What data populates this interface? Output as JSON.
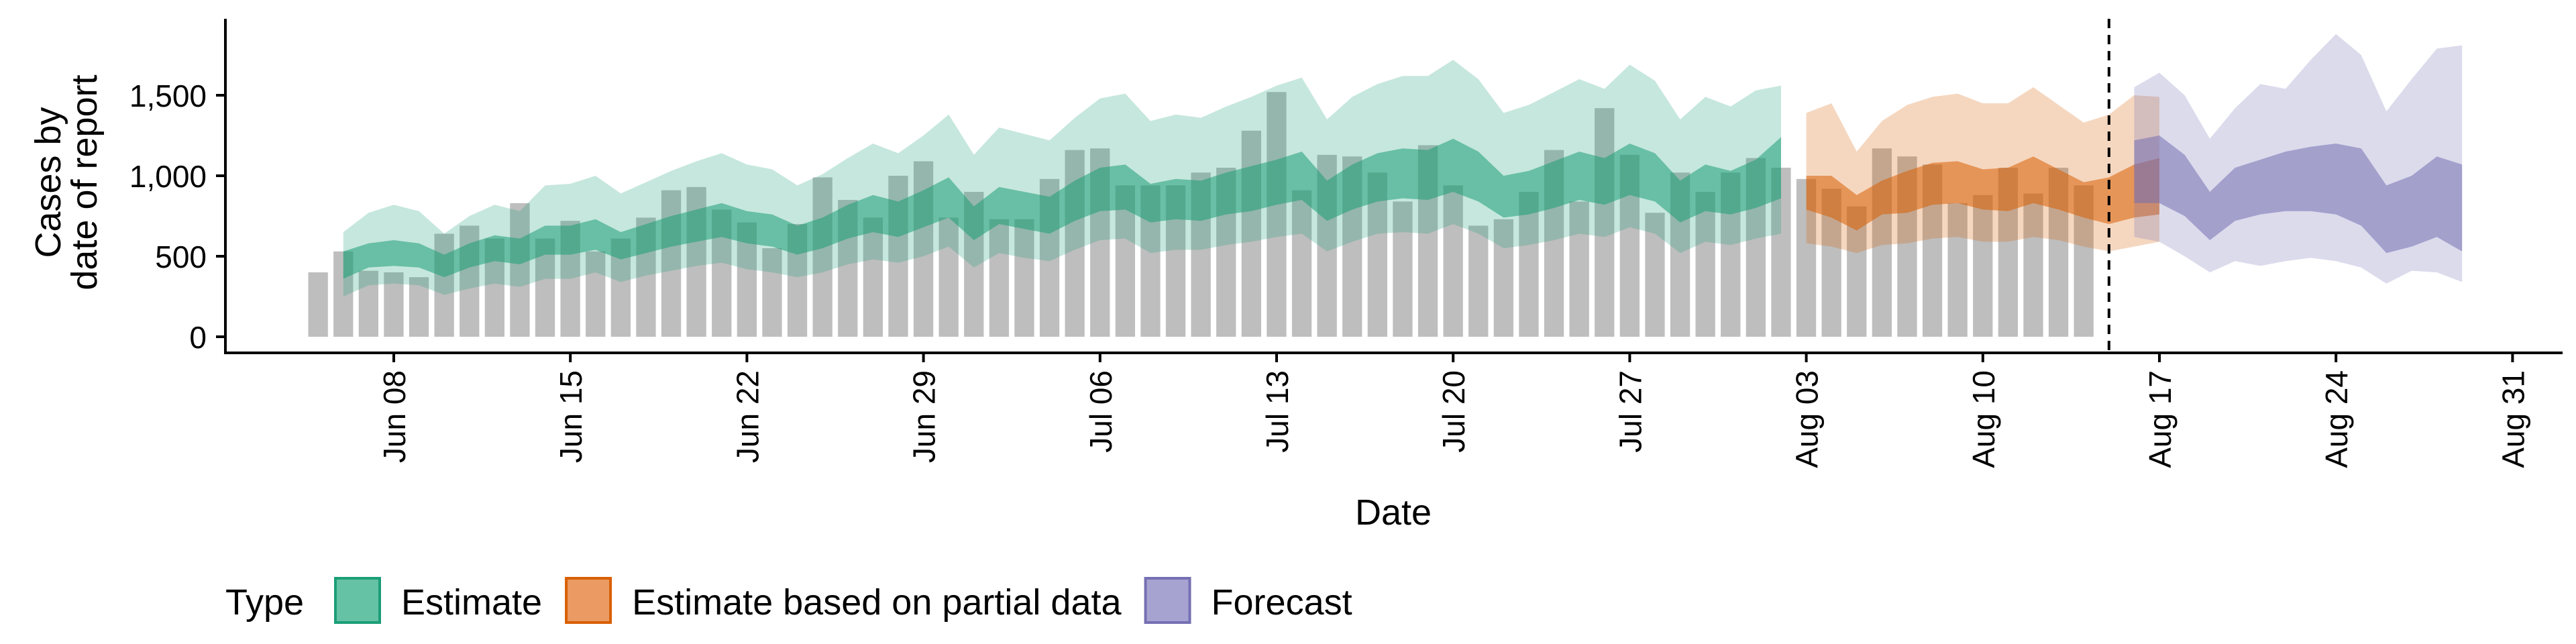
{
  "chart_data": {
    "type": "bar",
    "xlabel": "Date",
    "ylabel": "Cases by\ndate of report",
    "x_start": "2020-06-05",
    "x_range": [
      "2020-06-02",
      "2020-09-01"
    ],
    "ylim": [
      0,
      1950
    ],
    "y_ticks": [
      0,
      500,
      1000,
      1500
    ],
    "y_tick_labels": [
      "0",
      "500",
      "1,000",
      "1,500"
    ],
    "x_tick_labels": [
      "Jun 08",
      "Jun 15",
      "Jun 22",
      "Jun 29",
      "Jul 06",
      "Jul 13",
      "Jul 20",
      "Jul 27",
      "Aug 03",
      "Aug 10",
      "Aug 17",
      "Aug 24",
      "Aug 31"
    ],
    "x_tick_dates": [
      "2020-06-08",
      "2020-06-15",
      "2020-06-22",
      "2020-06-29",
      "2020-07-06",
      "2020-07-13",
      "2020-07-20",
      "2020-07-27",
      "2020-08-03",
      "2020-08-10",
      "2020-08-17",
      "2020-08-24",
      "2020-08-31"
    ],
    "reported_cases": {
      "start": "2020-06-05",
      "values": [
        400,
        530,
        410,
        400,
        370,
        640,
        690,
        610,
        830,
        610,
        720,
        530,
        610,
        740,
        910,
        930,
        790,
        710,
        550,
        700,
        990,
        850,
        740,
        1000,
        1090,
        740,
        900,
        730,
        730,
        980,
        1160,
        1170,
        940,
        940,
        940,
        1020,
        1050,
        1280,
        1520,
        910,
        1130,
        1120,
        1020,
        840,
        1190,
        940,
        690,
        730,
        900,
        1160,
        840,
        1420,
        1130,
        770,
        1020,
        900,
        1020,
        1110,
        1050,
        980,
        920,
        810,
        1170,
        1120,
        1070,
        830,
        880,
        1050,
        890,
        1050,
        940
      ]
    },
    "series": [
      {
        "name": "Estimate",
        "color": "#1b9e77",
        "start": "2020-06-06",
        "lower90": [
          250,
          320,
          330,
          320,
          260,
          300,
          330,
          310,
          360,
          360,
          400,
          340,
          380,
          410,
          440,
          460,
          420,
          400,
          370,
          400,
          450,
          480,
          460,
          500,
          560,
          430,
          520,
          490,
          470,
          540,
          600,
          610,
          520,
          540,
          540,
          570,
          590,
          620,
          640,
          530,
          590,
          640,
          650,
          640,
          700,
          640,
          550,
          570,
          600,
          640,
          620,
          680,
          640,
          520,
          590,
          570,
          610,
          640
        ],
        "lower50": [
          360,
          430,
          440,
          430,
          370,
          430,
          470,
          450,
          510,
          510,
          540,
          480,
          520,
          560,
          590,
          620,
          580,
          560,
          510,
          550,
          610,
          650,
          620,
          680,
          740,
          600,
          700,
          670,
          640,
          720,
          780,
          790,
          710,
          730,
          720,
          760,
          780,
          820,
          850,
          720,
          790,
          840,
          860,
          850,
          900,
          840,
          740,
          760,
          800,
          850,
          820,
          880,
          840,
          710,
          780,
          760,
          800,
          860
        ],
        "upper50": [
          530,
          580,
          600,
          580,
          510,
          580,
          630,
          610,
          690,
          690,
          730,
          650,
          700,
          750,
          790,
          830,
          780,
          760,
          690,
          740,
          820,
          880,
          840,
          910,
          990,
          810,
          930,
          900,
          870,
          970,
          1050,
          1070,
          950,
          980,
          970,
          1020,
          1060,
          1100,
          1150,
          970,
          1070,
          1140,
          1170,
          1160,
          1230,
          1150,
          1000,
          1030,
          1090,
          1150,
          1110,
          1200,
          1140,
          970,
          1070,
          1030,
          1100,
          1240
        ],
        "upper90": [
          650,
          770,
          820,
          780,
          640,
          750,
          820,
          780,
          940,
          950,
          1000,
          890,
          960,
          1030,
          1090,
          1140,
          1070,
          1040,
          940,
          1010,
          1110,
          1200,
          1140,
          1250,
          1380,
          1130,
          1300,
          1260,
          1220,
          1360,
          1480,
          1510,
          1340,
          1380,
          1360,
          1430,
          1490,
          1560,
          1610,
          1350,
          1490,
          1570,
          1620,
          1620,
          1720,
          1600,
          1390,
          1440,
          1520,
          1600,
          1540,
          1690,
          1590,
          1350,
          1490,
          1430,
          1530,
          1560
        ]
      },
      {
        "name": "Estimate based on partial data",
        "color": "#d95f02",
        "start": "2020-08-03",
        "lower90": [
          580,
          560,
          520,
          570,
          580,
          610,
          620,
          590,
          590,
          620,
          600,
          560,
          530,
          560,
          590
        ],
        "lower50": [
          790,
          740,
          660,
          760,
          770,
          820,
          830,
          790,
          780,
          830,
          790,
          740,
          700,
          740,
          760
        ],
        "upper50": [
          1000,
          1000,
          880,
          970,
          1030,
          1080,
          1090,
          1040,
          1050,
          1120,
          1040,
          960,
          990,
          1070,
          1110
        ],
        "upper90": [
          1390,
          1450,
          1150,
          1340,
          1440,
          1490,
          1510,
          1450,
          1450,
          1550,
          1440,
          1330,
          1380,
          1500,
          1490
        ]
      },
      {
        "name": "Forecast",
        "color": "#7570b3",
        "start": "2020-08-16",
        "lower90": [
          620,
          590,
          500,
          400,
          470,
          440,
          470,
          490,
          470,
          430,
          330,
          410,
          400,
          340
        ],
        "lower50": [
          830,
          830,
          750,
          600,
          720,
          760,
          780,
          780,
          760,
          690,
          520,
          560,
          620,
          530
        ],
        "upper50": [
          1220,
          1250,
          1130,
          900,
          1050,
          1100,
          1150,
          1180,
          1200,
          1170,
          940,
          1000,
          1120,
          1070
        ],
        "upper90": [
          1550,
          1640,
          1500,
          1230,
          1420,
          1570,
          1540,
          1720,
          1880,
          1750,
          1400,
          1600,
          1790,
          1810
        ]
      }
    ],
    "vline_date": "2020-08-15",
    "legend": {
      "title": "Type",
      "placement": "bottom",
      "items": [
        {
          "label": "Estimate",
          "color": "#66c2a5",
          "border": "#1b9e77"
        },
        {
          "label": "Estimate based on partial data",
          "color": "#eb9a63",
          "border": "#d95f02"
        },
        {
          "label": "Forecast",
          "color": "#a6a3d1",
          "border": "#7570b3"
        }
      ]
    },
    "bar_color": "#bebebe",
    "grid": false
  }
}
